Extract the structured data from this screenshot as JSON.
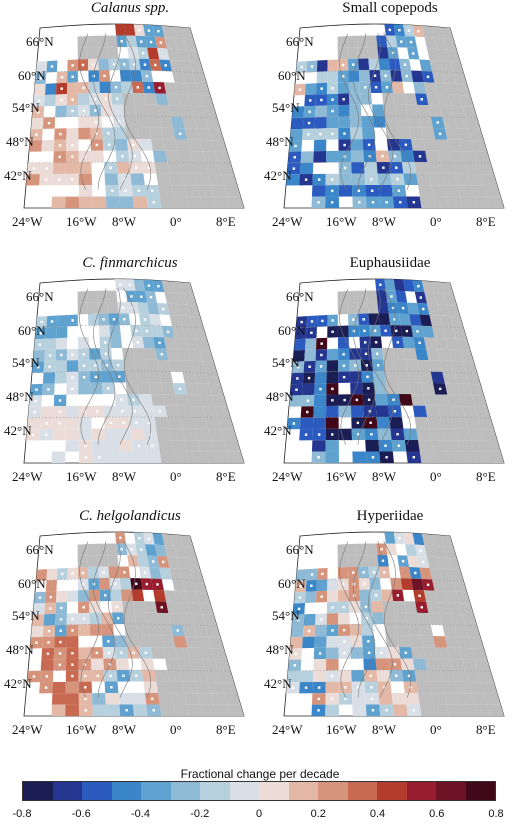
{
  "panels": [
    {
      "title": "Calanus spp.",
      "italic": true,
      "pattern": "mixed_red_sw"
    },
    {
      "title": "Small copepods",
      "italic": false,
      "pattern": "blue"
    },
    {
      "title": "C. finmarchicus",
      "italic": true,
      "pattern": "blue_light"
    },
    {
      "title": "Euphausiidae",
      "italic": false,
      "pattern": "blue_dark"
    },
    {
      "title": "C. helgolandicus",
      "italic": true,
      "pattern": "red_ns"
    },
    {
      "title": "Hyperiidae",
      "italic": false,
      "pattern": "mixed_hyp"
    }
  ],
  "lat_labels": [
    "66°N",
    "60°N",
    "54°N",
    "48°N",
    "42°N"
  ],
  "lon_labels": [
    "24°W",
    "16°W",
    "8°W",
    "0°",
    "8°E"
  ],
  "colorbar": {
    "title": "Fractional change per decade",
    "ticks": [
      "-0.8",
      "-0.6",
      "-0.4",
      "-0.2",
      "0",
      "0.2",
      "0.4",
      "0.6",
      "0.8"
    ],
    "colors": [
      "#1a1e55",
      "#243690",
      "#2c5bbf",
      "#3a86c9",
      "#5fa2cf",
      "#8ebad6",
      "#b7d0de",
      "#d8dfe6",
      "#ecdcd8",
      "#e3b8a6",
      "#d7947c",
      "#c86a52",
      "#b43c2c",
      "#981e2f",
      "#6e1225",
      "#400818"
    ]
  }
}
